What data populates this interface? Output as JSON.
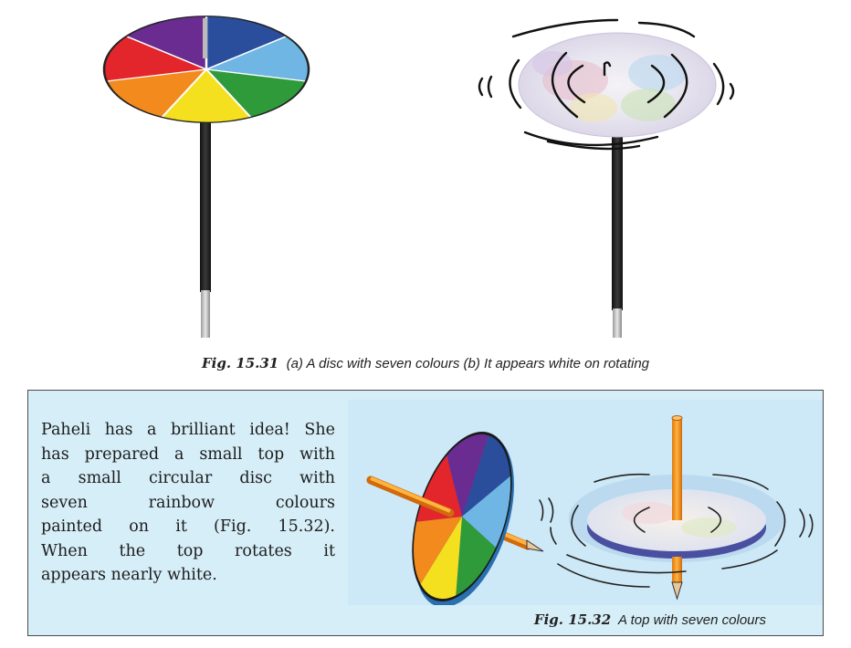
{
  "figure_31": {
    "fig_label": "Fig. 15.31",
    "caption": "(a) A disc with seven colours (b) It appears white on rotating"
  },
  "colors": {
    "violet": "#6a2c91",
    "blue": "#2a4d9c",
    "sky": "#6fb6e4",
    "green": "#2f9a3a",
    "yellow": "#f5e020",
    "orange": "#f28a1e",
    "red": "#e2262b",
    "panel_bg": "#d6eef8"
  },
  "panel": {
    "text_lines": [
      "Paheli has a brilliant idea! She",
      "has prepared a small top with",
      "a small circular disc with",
      "seven rainbow colours",
      "painted on it (Fig. 15.32).",
      "When the top rotates it",
      "appears nearly white."
    ],
    "fig_label": "Fig. 15.32",
    "caption": "A top with seven colours"
  }
}
